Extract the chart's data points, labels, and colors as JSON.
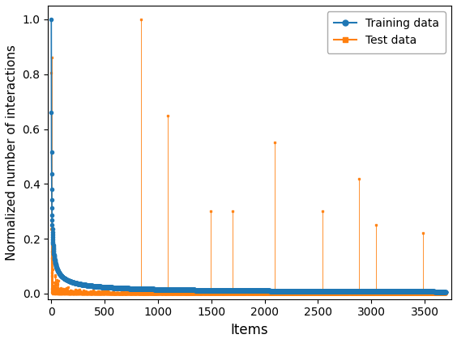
{
  "title": "",
  "xlabel": "Items",
  "ylabel": "Normalized number of interactions",
  "xlim": [
    -30,
    3750
  ],
  "ylim": [
    -0.02,
    1.05
  ],
  "train_color": "#1f77b4",
  "test_color": "#ff7f0e",
  "train_label": "Training data",
  "test_label": "Test data",
  "train_marker": "o",
  "test_marker": "s",
  "n_items": 3700,
  "background_color": "#ffffff",
  "xticks": [
    0,
    500,
    1000,
    1500,
    2000,
    2500,
    3000,
    3500
  ],
  "yticks": [
    0.0,
    0.2,
    0.4,
    0.6,
    0.8,
    1.0
  ],
  "figsize": [
    5.64,
    4.24
  ],
  "dpi": 100
}
